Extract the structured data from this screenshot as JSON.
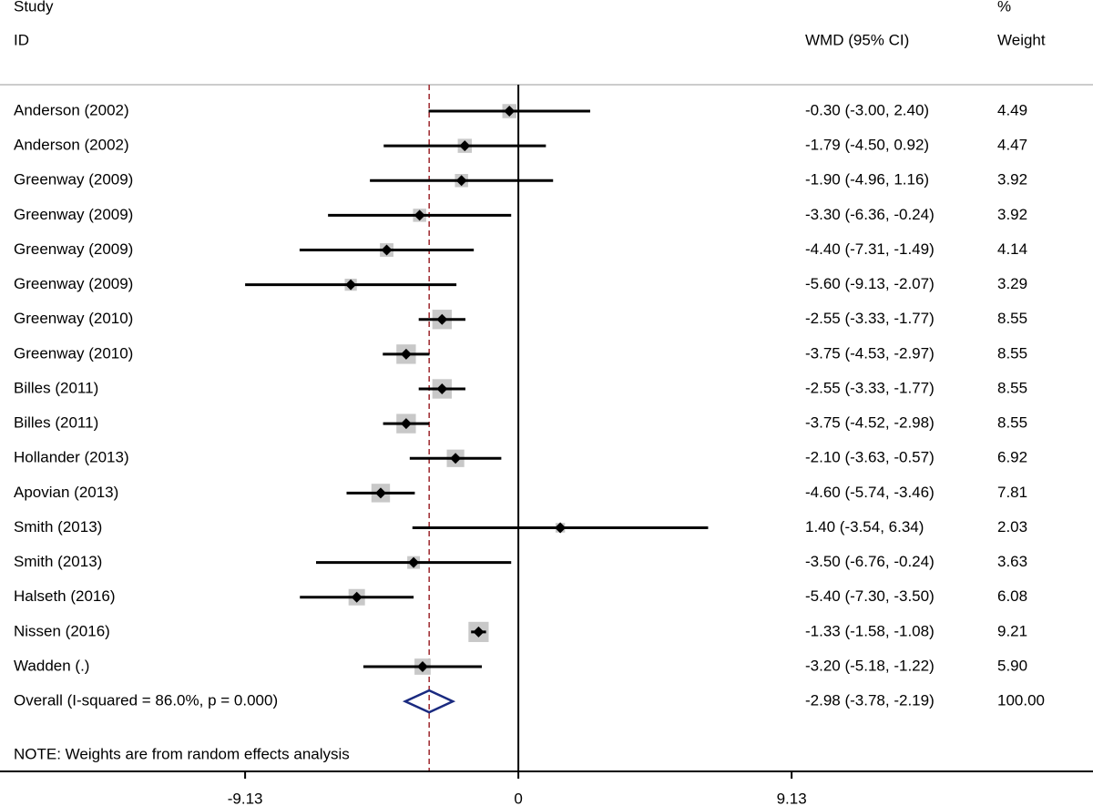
{
  "chart_data": {
    "type": "forest",
    "header": {
      "study": "Study",
      "id": "ID",
      "effect": "WMD (95% CI)",
      "percent": "%",
      "weight": "Weight"
    },
    "studies": [
      {
        "name": "Anderson (2002)",
        "estimate": -0.3,
        "lower": -3.0,
        "upper": 2.4,
        "ci_label": "-0.30 (-3.00, 2.40)",
        "weight": 4.49,
        "weight_label": "4.49"
      },
      {
        "name": "Anderson (2002)",
        "estimate": -1.79,
        "lower": -4.5,
        "upper": 0.92,
        "ci_label": "-1.79 (-4.50, 0.92)",
        "weight": 4.47,
        "weight_label": "4.47"
      },
      {
        "name": "Greenway (2009)",
        "estimate": -1.9,
        "lower": -4.96,
        "upper": 1.16,
        "ci_label": "-1.90 (-4.96, 1.16)",
        "weight": 3.92,
        "weight_label": "3.92"
      },
      {
        "name": "Greenway (2009)",
        "estimate": -3.3,
        "lower": -6.36,
        "upper": -0.24,
        "ci_label": "-3.30 (-6.36, -0.24)",
        "weight": 3.92,
        "weight_label": "3.92"
      },
      {
        "name": "Greenway (2009)",
        "estimate": -4.4,
        "lower": -7.31,
        "upper": -1.49,
        "ci_label": "-4.40 (-7.31, -1.49)",
        "weight": 4.14,
        "weight_label": "4.14"
      },
      {
        "name": "Greenway (2009)",
        "estimate": -5.6,
        "lower": -9.13,
        "upper": -2.07,
        "ci_label": "-5.60 (-9.13, -2.07)",
        "weight": 3.29,
        "weight_label": "3.29"
      },
      {
        "name": "Greenway (2010)",
        "estimate": -2.55,
        "lower": -3.33,
        "upper": -1.77,
        "ci_label": "-2.55 (-3.33, -1.77)",
        "weight": 8.55,
        "weight_label": "8.55"
      },
      {
        "name": "Greenway (2010)",
        "estimate": -3.75,
        "lower": -4.53,
        "upper": -2.97,
        "ci_label": "-3.75 (-4.53, -2.97)",
        "weight": 8.55,
        "weight_label": "8.55"
      },
      {
        "name": "Billes (2011)",
        "estimate": -2.55,
        "lower": -3.33,
        "upper": -1.77,
        "ci_label": "-2.55 (-3.33, -1.77)",
        "weight": 8.55,
        "weight_label": "8.55"
      },
      {
        "name": "Billes (2011)",
        "estimate": -3.75,
        "lower": -4.52,
        "upper": -2.98,
        "ci_label": "-3.75 (-4.52, -2.98)",
        "weight": 8.55,
        "weight_label": "8.55"
      },
      {
        "name": "Hollander (2013)",
        "estimate": -2.1,
        "lower": -3.63,
        "upper": -0.57,
        "ci_label": "-2.10 (-3.63, -0.57)",
        "weight": 6.92,
        "weight_label": "6.92"
      },
      {
        "name": "Apovian (2013)",
        "estimate": -4.6,
        "lower": -5.74,
        "upper": -3.46,
        "ci_label": "-4.60 (-5.74, -3.46)",
        "weight": 7.81,
        "weight_label": "7.81"
      },
      {
        "name": "Smith (2013)",
        "estimate": 1.4,
        "lower": -3.54,
        "upper": 6.34,
        "ci_label": "1.40 (-3.54, 6.34)",
        "weight": 2.03,
        "weight_label": "2.03"
      },
      {
        "name": "Smith (2013)",
        "estimate": -3.5,
        "lower": -6.76,
        "upper": -0.24,
        "ci_label": "-3.50 (-6.76, -0.24)",
        "weight": 3.63,
        "weight_label": "3.63"
      },
      {
        "name": "Halseth (2016)",
        "estimate": -5.4,
        "lower": -7.3,
        "upper": -3.5,
        "ci_label": "-5.40 (-7.30, -3.50)",
        "weight": 6.08,
        "weight_label": "6.08"
      },
      {
        "name": "Nissen (2016)",
        "estimate": -1.33,
        "lower": -1.58,
        "upper": -1.08,
        "ci_label": "-1.33 (-1.58, -1.08)",
        "weight": 9.21,
        "weight_label": "9.21"
      },
      {
        "name": "Wadden (.)",
        "estimate": -3.2,
        "lower": -5.18,
        "upper": -1.22,
        "ci_label": "-3.20 (-5.18, -1.22)",
        "weight": 5.9,
        "weight_label": "5.90"
      }
    ],
    "overall": {
      "name": "Overall  (I-squared = 86.0%, p = 0.000)",
      "estimate": -2.98,
      "lower": -3.78,
      "upper": -2.19,
      "ci_label": "-2.98 (-3.78, -2.19)",
      "weight": 100,
      "weight_label": "100.00"
    },
    "note": "NOTE: Weights are from random effects analysis",
    "xlim": [
      -17.32,
      19.2
    ],
    "xticks": [
      -9.13,
      0,
      9.13
    ]
  }
}
